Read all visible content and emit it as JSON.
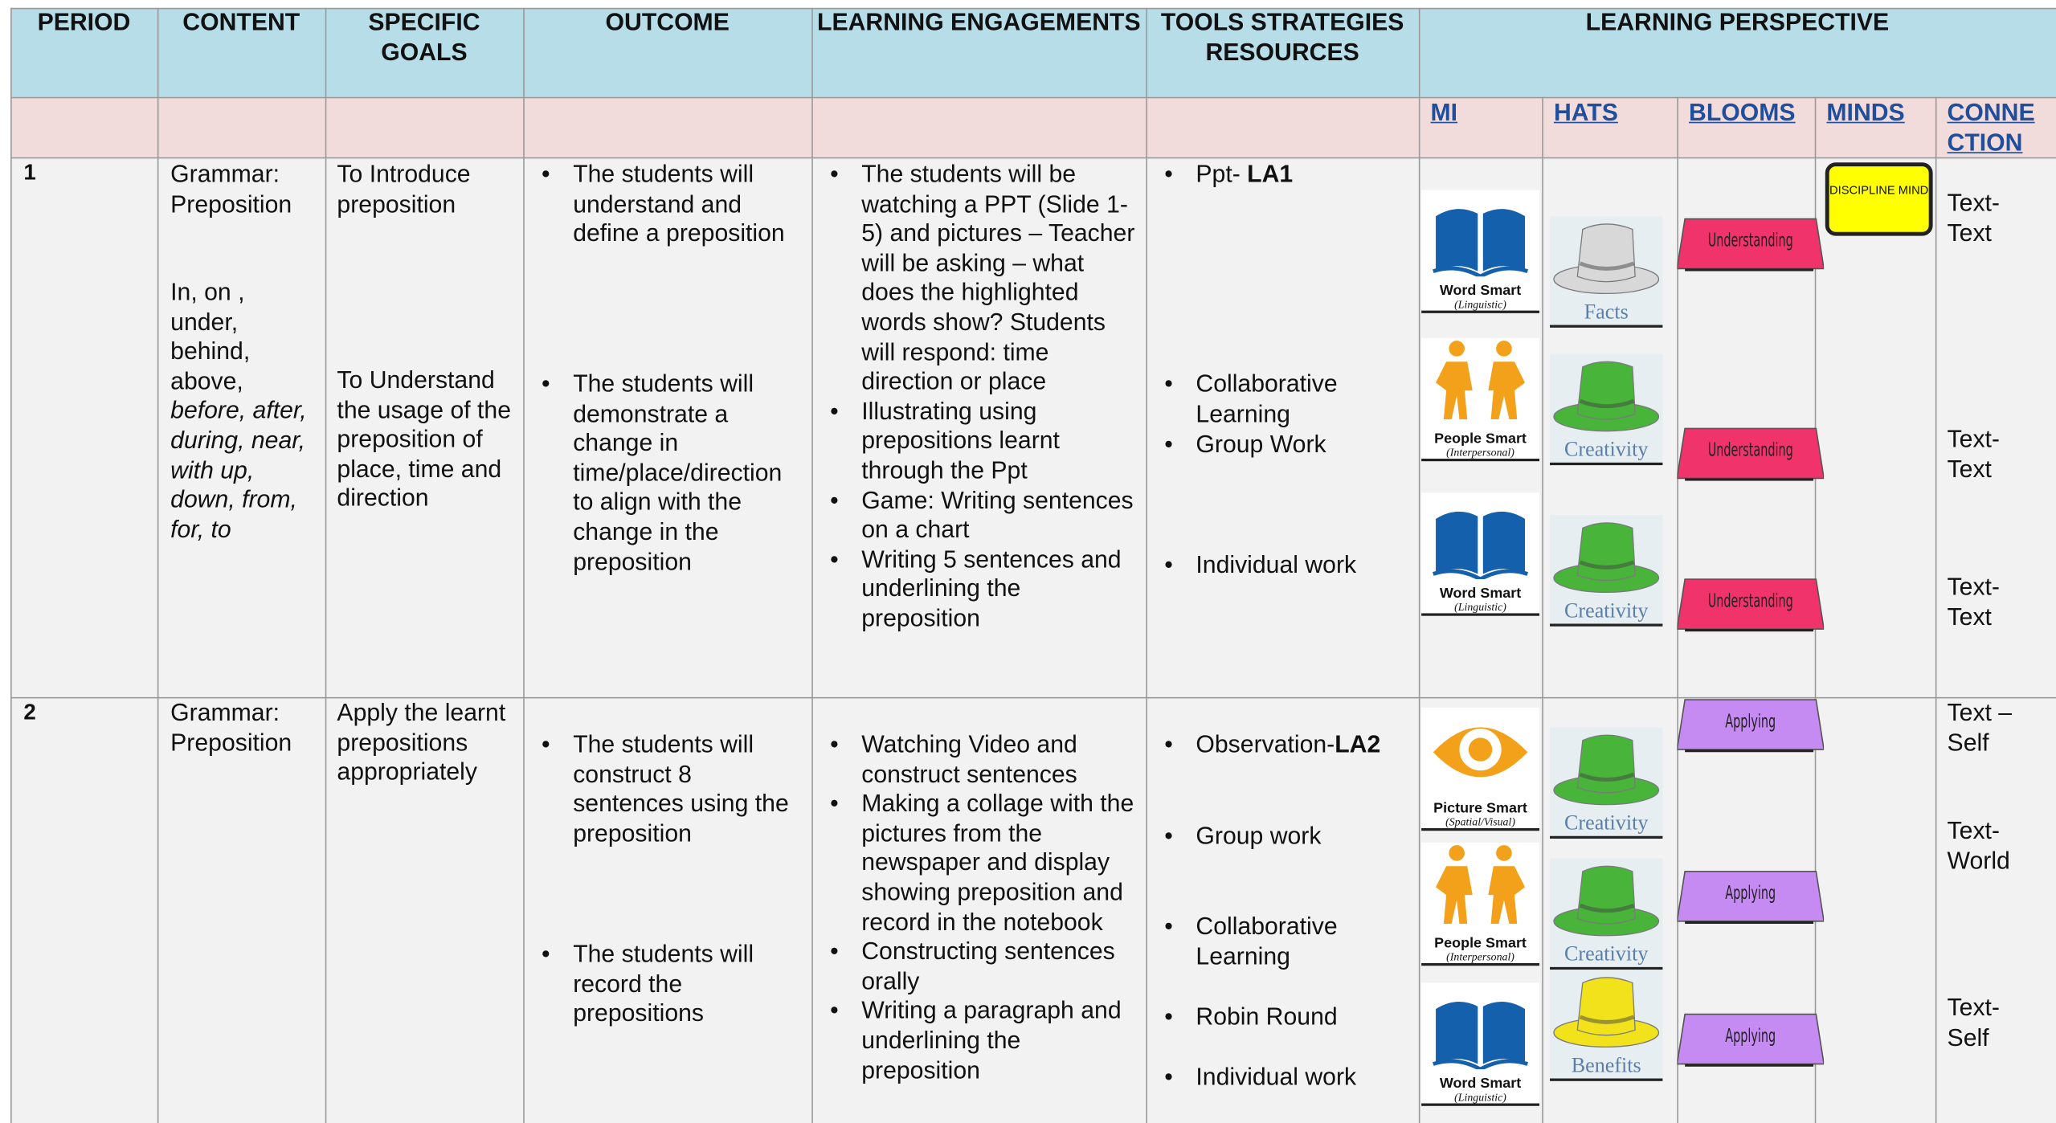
{
  "header": {
    "columns": [
      "PERIOD",
      "CONTENT",
      "SPECIFIC GOALS",
      "OUTCOME",
      "LEARNING ENGAGEMENTS",
      "TOOLS STRATEGIES RESOURCES",
      "LEARNING PERSPECTIVE"
    ],
    "perspectives": [
      "MI",
      "HATS",
      "BLOOMS",
      "MINDS",
      "CONNECTION"
    ]
  },
  "rows": [
    {
      "period": "1",
      "content": {
        "topic": "Grammar: Preposition",
        "words": "In, on , under, behind, above,",
        "italic_words": "before, after, during, near, with up, down, from, for, to"
      },
      "goals": [
        "To Introduce preposition",
        "To Understand the usage of the preposition of place, time and direction"
      ],
      "outcomes": [
        "The students will understand and define a preposition",
        "The students will demonstrate a change in time/place/direction to align with the change in the preposition"
      ],
      "engagements": [
        "The students will be watching a PPT (Slide 1-5) and pictures – Teacher will be asking – what does the highlighted words show? Students will respond: time direction or place",
        "Illustrating  using prepositions learnt through the Ppt",
        "Game:  Writing sentences on a chart",
        "Writing 5 sentences and underlining the preposition"
      ],
      "tools": [
        {
          "text": "Ppt- ",
          "bold": "LA1"
        },
        {
          "text": "Collaborative Learning"
        },
        {
          "text": "Group Work"
        },
        {
          "text": "Individual work"
        }
      ],
      "mi": [
        {
          "name": "Word Smart",
          "sub": "(Linguistic)"
        },
        {
          "name": "People Smart",
          "sub": "(Interpersonal)"
        },
        {
          "name": "Word Smart",
          "sub": "(Linguistic)"
        }
      ],
      "hats": [
        "Facts",
        "Creativity",
        "Creativity"
      ],
      "blooms": [
        "Understanding",
        "Understanding",
        "Understanding"
      ],
      "minds": [
        "DISCIPLINE MIND"
      ],
      "connection": [
        "Text-Text",
        "Text-Text",
        "Text-Text"
      ]
    },
    {
      "period": "2",
      "content": {
        "topic": "Grammar: Preposition"
      },
      "goals": [
        "Apply the learnt prepositions appropriately"
      ],
      "outcomes": [
        "The students will construct 8 sentences using the preposition",
        "The students will record the prepositions"
      ],
      "engagements": [
        "Watching Video and construct sentences",
        "Making a collage with the pictures from the newspaper and display showing preposition and record in the notebook",
        "Constructing sentences orally",
        "Writing a paragraph and underlining  the preposition"
      ],
      "tools": [
        {
          "text": "Observation-",
          "bold": "LA2"
        },
        {
          "text": "Group work"
        },
        {
          "text": "Collaborative Learning"
        },
        {
          "text": "Robin Round"
        },
        {
          "text": "Individual work"
        }
      ],
      "mi": [
        {
          "name": "Picture Smart",
          "sub": "(Spatial/Visual)"
        },
        {
          "name": "People Smart",
          "sub": "(Interpersonal)"
        },
        {
          "name": "Word Smart",
          "sub": "(Linguistic)"
        }
      ],
      "hats": [
        "Creativity",
        "Creativity",
        "Benefits"
      ],
      "blooms": [
        "Applying",
        "Applying",
        "Applying"
      ],
      "connection": [
        "Text – Self",
        "Text-World",
        "Text-Self"
      ]
    }
  ]
}
